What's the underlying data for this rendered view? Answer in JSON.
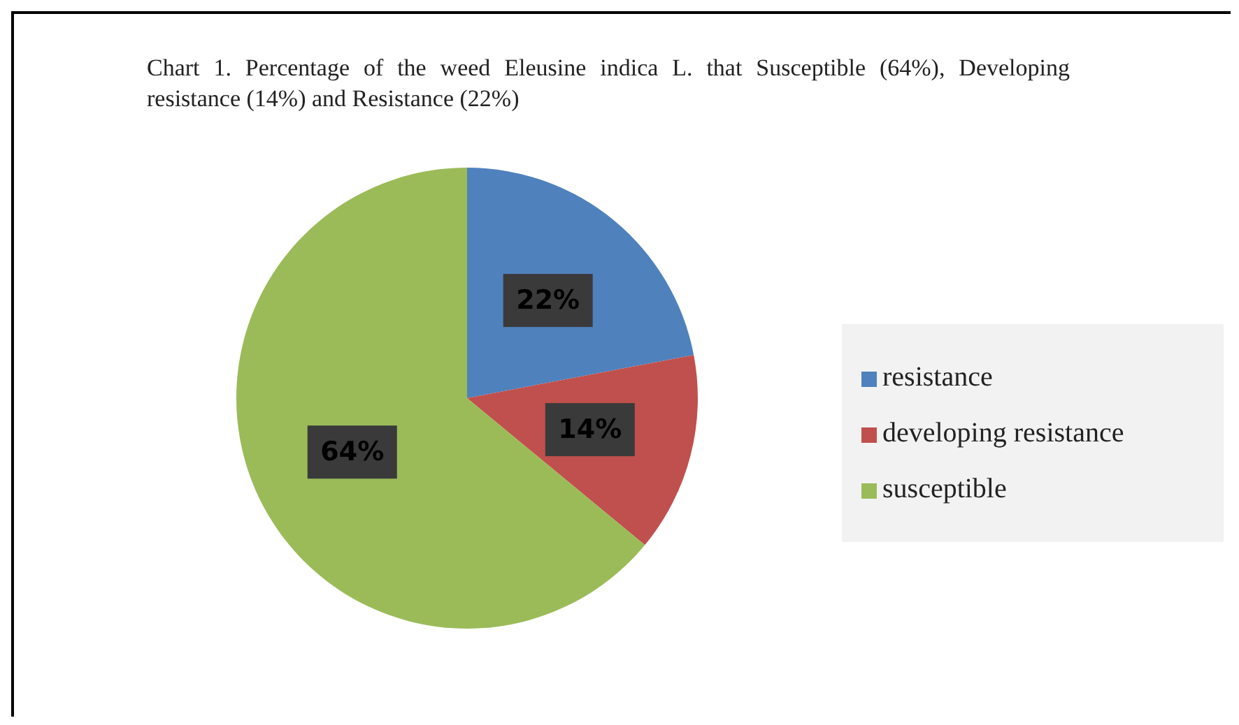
{
  "chart_data": {
    "type": "pie",
    "title": "Chart 1. Percentage of the weed Eleusine indica  L. that Susceptible (64%), Developing resistance (14%) and Resistance (22%)",
    "categories": [
      "resistance",
      "developing resistance",
      "susceptible"
    ],
    "values": [
      22,
      14,
      64
    ],
    "colors": [
      "#4f81bd",
      "#c0504d",
      "#9bbb59"
    ],
    "value_labels": [
      "22%",
      "14%",
      "64%"
    ],
    "legend": "right"
  }
}
